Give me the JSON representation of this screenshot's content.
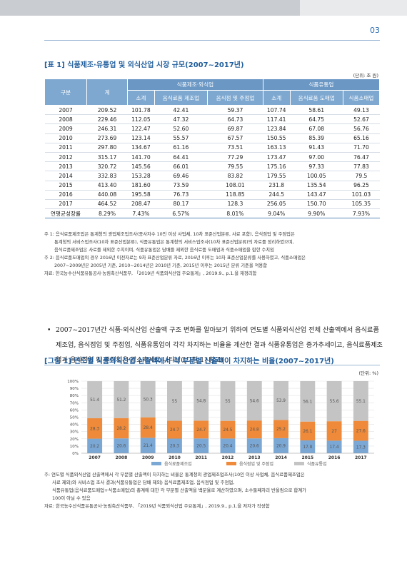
{
  "header": {
    "page_number": "03"
  },
  "table": {
    "title": "[표 1] 식품제조·유통업 및 외식산업 시장 규모(2007~2017년)",
    "unit": "(단위: 조 원)",
    "group_headers": [
      "식품제조·외식업",
      "식품유통업"
    ],
    "col_headers": [
      "구분",
      "계",
      "소계",
      "음식료품 제조업",
      "음식점 및 주점업",
      "소계",
      "음식료품 도매업",
      "식품소매업"
    ],
    "rows": [
      [
        "2007",
        "209.52",
        "101.78",
        "42.41",
        "59.37",
        "107.74",
        "58.61",
        "49.13"
      ],
      [
        "2008",
        "229.46",
        "112.05",
        "47.32",
        "64.73",
        "117.41",
        "64.75",
        "52.67"
      ],
      [
        "2009",
        "246.31",
        "122.47",
        "52.60",
        "69.87",
        "123.84",
        "67.08",
        "56.76"
      ],
      [
        "2010",
        "273.69",
        "123.14",
        "55.57",
        "67.57",
        "150.55",
        "85.39",
        "65.16"
      ],
      [
        "2011",
        "297.80",
        "134.67",
        "61.16",
        "73.51",
        "163.13",
        "91.43",
        "71.70"
      ],
      [
        "2012",
        "315.17",
        "141.70",
        "64.41",
        "77.29",
        "173.47",
        "97.00",
        "76.47"
      ],
      [
        "2013",
        "320.72",
        "145.56",
        "66.01",
        "79.55",
        "175.16",
        "97.33",
        "77.83"
      ],
      [
        "2014",
        "332.83",
        "153.28",
        "69.46",
        "83.82",
        "179.55",
        "100.05",
        "79.5"
      ],
      [
        "2015",
        "413.40",
        "181.60",
        "73.59",
        "108.01",
        "231.8",
        "135.54",
        "96.25"
      ],
      [
        "2016",
        "440.08",
        "195.58",
        "76.73",
        "118.85",
        "244.5",
        "143.47",
        "101.03"
      ],
      [
        "2017",
        "464.52",
        "208.47",
        "80.17",
        "128.3",
        "256.05",
        "150.70",
        "105.35"
      ],
      [
        "연평균성장률",
        "8.29%",
        "7.43%",
        "6.57%",
        "8.01%",
        "9.04%",
        "9.90%",
        "7.93%"
      ]
    ],
    "notes": [
      "주 1: 음식료품제조업은 통계청의 광업제조업조사(종사자수 10인 이상 사업체, 10차 표준산업분류, 사료 포함), 음식점업 및 주점업은",
      "통계청의 서비스업조사(10차 표준산업분류), 식품유통업은 통계청의 서비스업조사(10차 표준산업분류)의 자료를 정리하였으며,",
      "음식료품제조업은 사료를 제외한 수치이며, 식품유통업은 담배를 제외한 음식료품 도매업과 식품소매업을 합한 수치임",
      "주 2: 음식료품도매업의 경우 2016년 이전자료는 9차 표준산업분류 자료, 2016년 이후는 10차 표준산업분류를 사용하였고, 식품소매업은",
      "2007~2009년은 2005년 기준, 2010~2014년은 2010년 기준, 2015년 이후는 2015년 분류 기준을 적용함",
      "자료: 한국농수산식품유통공사·농림축산식품부, 「2019년 식품외식산업 주요통계」, 2019.9., p.1.을 재정리함"
    ]
  },
  "body": {
    "bullet": "2007~2017년간 식품·외식산업 산출액 구조 변화를 알아보기 위하여 연도별 식품외식산업 전체 산출액에서 음식료품제조업, 음식점업 및 주점업, 식품유통업이 각각 차지하는 비율을 계산한 결과 식품유통업은 증가추세이고, 음식료품제조업과 음식점업 및 주점업은 감소추세로 나타남([그림 1] 참고)"
  },
  "figure": {
    "title": "[그림 1] 연도별 식품외식산업 산출액에서 각 부문별 산출액이 차지하는 비율(2007~2017년)",
    "unit": "(단위: %)",
    "notes": [
      "주: 연도별 식품외식산업 산출액에서 각 부문별 산출액이 차지하는 비율은 통계청의 광업제조업조사(10인 이상 사업체, 음식료품제조업은",
      "사료 제외)와 서비스업 조사 결과(식품유통업은 담배 제외) 음식료품제조업, 음식점업 및 주점업,",
      "식품유통업(음식료품도매업+식품소매업)의 총계에 대한 각 부문별 산출액을 백분율로 계산하였으며, 소수둘째자리 반올림으로 합계가",
      "100이 아닐 수 있음",
      "자료: 한국농수산식품유통공사·농림축산식품부, 「2019년 식품외식산업 주요통계」, 2019.9., p.1.을 저자가 작성함"
    ]
  },
  "chart_data": {
    "type": "bar",
    "stacked": true,
    "categories": [
      "2007",
      "2008",
      "2009",
      "2010",
      "2011",
      "2012",
      "2013",
      "2014",
      "2015",
      "2016",
      "2017"
    ],
    "series": [
      {
        "name": "음식료품제조업",
        "color": "#7ba7d4",
        "values": [
          20.2,
          20.6,
          21.4,
          20.3,
          20.5,
          20.4,
          20.6,
          20.9,
          17.8,
          17.4,
          17.3
        ]
      },
      {
        "name": "음식점업 및 주점업",
        "color": "#ee8a3a",
        "values": [
          28.3,
          28.2,
          28.4,
          24.7,
          24.7,
          24.5,
          24.8,
          25.2,
          26.1,
          27.0,
          27.6
        ]
      },
      {
        "name": "식품유통업",
        "color": "#c4c4c4",
        "values": [
          51.4,
          51.2,
          50.3,
          55.0,
          54.8,
          55.0,
          54.6,
          53.9,
          56.1,
          55.6,
          55.1
        ]
      }
    ],
    "yticks": [
      "0%",
      "10%",
      "20%",
      "30%",
      "40%",
      "50%",
      "60%",
      "70%",
      "80%",
      "90%",
      "100%"
    ],
    "ylim": [
      0,
      100
    ],
    "legend_position": "bottom"
  }
}
